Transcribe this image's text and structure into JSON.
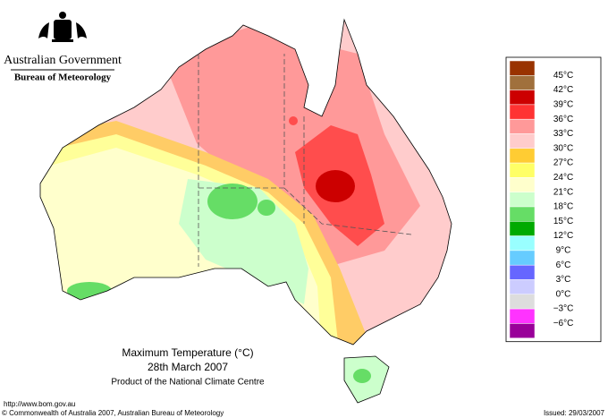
{
  "header": {
    "agency": "Australian Government",
    "bureau": "Bureau of Meteorology"
  },
  "legend": {
    "labels": [
      "45°C",
      "42°C",
      "39°C",
      "36°C",
      "33°C",
      "30°C",
      "27°C",
      "24°C",
      "21°C",
      "18°C",
      "15°C",
      "12°C",
      "9°C",
      "6°C",
      "3°C",
      "0°C",
      "−3°C",
      "−6°C"
    ],
    "colors": [
      "#993300",
      "#a0703c",
      "#cc0000",
      "#ff3333",
      "#ff9999",
      "#ffcccc",
      "#ffcc33",
      "#ffff66",
      "#ffffcc",
      "#ccffcc",
      "#66dd66",
      "#00aa00",
      "#99ffff",
      "#66ccff",
      "#6666ff",
      "#ccccff",
      "#dddddd",
      "#ff33ff",
      "#990099"
    ]
  },
  "map": {
    "title": "Maximum Temperature (°C)",
    "date": "28th March 2007",
    "product": "Product of the National Climate Centre"
  },
  "footer": {
    "url": "http://www.bom.gov.au",
    "copyright": "© Commonwealth of Australia 2007, Australian Bureau of Meteorology",
    "issued": "Issued: 29/03/2007"
  }
}
